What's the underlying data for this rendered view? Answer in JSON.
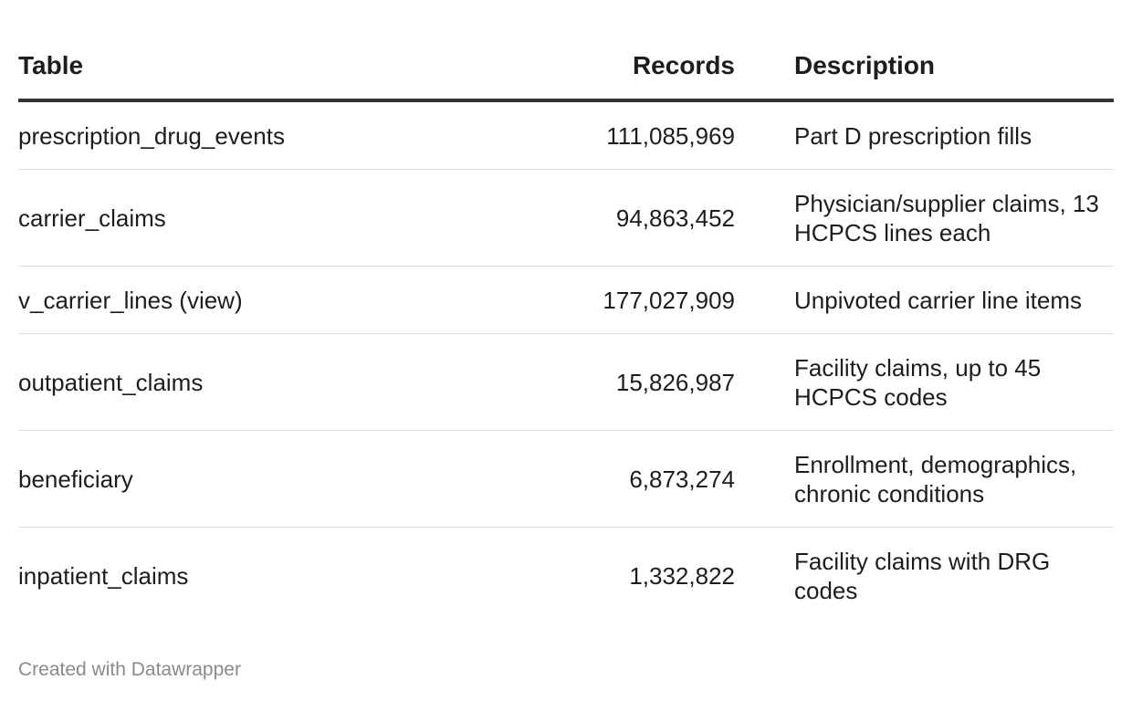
{
  "chart_data": {
    "type": "table",
    "columns": [
      "Table",
      "Records",
      "Description"
    ],
    "rows": [
      {
        "table": "prescription_drug_events",
        "records": "111,085,969",
        "description": "Part D prescription fills"
      },
      {
        "table": "carrier_claims",
        "records": "94,863,452",
        "description": "Physician/supplier claims, 13 HCPCS lines each"
      },
      {
        "table": "v_carrier_lines (view)",
        "records": "177,027,909",
        "description": "Unpivoted carrier line items"
      },
      {
        "table": "outpatient_claims",
        "records": "15,826,987",
        "description": "Facility claims, up to 45 HCPCS codes"
      },
      {
        "table": "beneficiary",
        "records": "6,873,274",
        "description": "Enrollment, demographics, chronic conditions"
      },
      {
        "table": "inpatient_claims",
        "records": "1,332,822",
        "description": "Facility claims with DRG codes"
      }
    ]
  },
  "footer": {
    "credit": "Created with Datawrapper"
  }
}
